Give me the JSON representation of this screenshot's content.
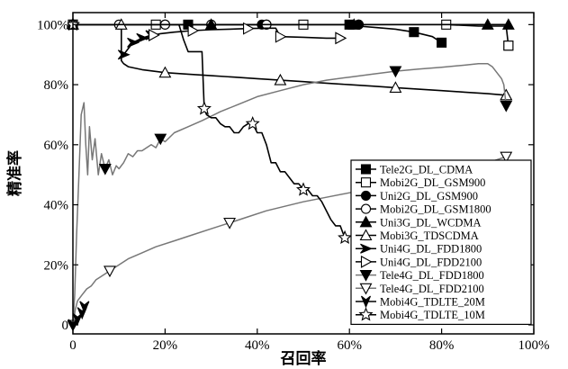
{
  "chart_data": {
    "type": "line",
    "title": "",
    "xlabel": "召回率",
    "ylabel": "精准率",
    "xlim": [
      0,
      100
    ],
    "ylim": [
      -3,
      104
    ],
    "x_ticks": [
      "0",
      "20%",
      "40%",
      "60%",
      "80%",
      "100%"
    ],
    "y_ticks": [
      "0",
      "20%",
      "40%",
      "60%",
      "80%",
      "100%"
    ],
    "x_tick_values": [
      0,
      20,
      40,
      60,
      80,
      100
    ],
    "y_tick_values": [
      0,
      20,
      40,
      60,
      80,
      100
    ],
    "grid": false,
    "legend_position": "bottom-right",
    "series": [
      {
        "name": "Tele2G_DL_CDMA",
        "marker": "square-filled",
        "color": "#000000",
        "x": [
          0,
          5,
          10,
          17,
          25,
          35,
          45,
          55,
          60,
          62,
          66,
          70,
          74,
          78,
          80
        ],
        "y": [
          100,
          100,
          100,
          100,
          100,
          100,
          100,
          100,
          100,
          99.5,
          99,
          98.5,
          97.5,
          96,
          94
        ]
      },
      {
        "name": "Mobi2G_DL_GSM900",
        "marker": "square-open",
        "color": "#000000",
        "x": [
          0,
          2,
          10,
          18,
          30,
          41,
          50,
          63,
          75,
          81,
          88,
          94,
          94.5
        ],
        "y": [
          100,
          100,
          100,
          100,
          100,
          100,
          100,
          100,
          100,
          100,
          99.5,
          99.5,
          93
        ]
      },
      {
        "name": "Uni2G_DL_GSM900",
        "marker": "circle-filled",
        "color": "#000000",
        "x": [
          0,
          10,
          20,
          30,
          41,
          50,
          62
        ],
        "y": [
          100,
          100,
          100,
          100,
          100,
          100,
          100
        ]
      },
      {
        "name": "Mobi2G_DL_GSM1800",
        "marker": "circle-open",
        "color": "#000000",
        "x": [
          0,
          10,
          20,
          30,
          42
        ],
        "y": [
          100,
          100,
          100,
          100,
          100
        ]
      },
      {
        "name": "Uni3G_DL_WCDMA",
        "marker": "triangle-up-filled",
        "color": "#000000",
        "x": [
          0,
          3,
          17,
          30,
          41,
          50,
          61,
          71,
          81,
          90,
          94.5
        ],
        "y": [
          100,
          100,
          100,
          100,
          100,
          100,
          100,
          100,
          100,
          100,
          100
        ]
      },
      {
        "name": "Mobi3G_TDSCDMA",
        "marker": "triangle-up-open",
        "color": "#000000",
        "x": [
          10.5,
          10.5,
          11,
          12,
          15,
          20,
          25,
          30,
          35,
          40,
          45,
          50,
          55,
          60,
          65,
          70,
          75,
          80,
          85,
          90,
          94
        ],
        "y": [
          100,
          88,
          87,
          86,
          85,
          84,
          83.5,
          83,
          82.5,
          82,
          81.5,
          81,
          80.5,
          80,
          79.5,
          79,
          78.5,
          78,
          77.5,
          77,
          76.5
        ]
      },
      {
        "name": "Uni4G_DL_FDD1800",
        "marker": "arrow-right-filled",
        "color": "#000000",
        "x": [
          11,
          13,
          15,
          17
        ],
        "y": [
          90,
          94,
          95.5,
          96.5
        ]
      },
      {
        "name": "Uni4G_DL_FDD2100",
        "marker": "triangle-right-open",
        "color": "#000000",
        "x": [
          17.5,
          19,
          22,
          26,
          30,
          34,
          38,
          42,
          44,
          45,
          50,
          55,
          58
        ],
        "y": [
          96.5,
          97,
          97.5,
          98,
          98.3,
          98.5,
          98.7,
          98.8,
          98.8,
          96,
          95.8,
          95.5,
          95.5
        ]
      },
      {
        "name": "Tele4G_DL_FDD1800",
        "marker": "triangle-down-filled",
        "color": "#777777",
        "x": [
          0,
          0.4,
          0.8,
          1.3,
          1.8,
          2.4,
          2.8,
          3.2,
          3.6,
          4.2,
          4.8,
          5.5,
          6.2,
          7,
          7.8,
          8.6,
          9.4,
          10,
          11,
          12,
          13,
          14,
          15,
          16,
          17,
          18,
          19,
          20,
          22,
          25,
          28,
          32,
          36,
          40,
          45,
          50,
          55,
          60,
          65,
          70,
          75,
          80,
          85,
          88,
          90,
          91,
          92,
          93,
          93.5,
          94
        ],
        "y": [
          0,
          10,
          30,
          50,
          70,
          74,
          60,
          50,
          66,
          55,
          62,
          50,
          57,
          52,
          55,
          50,
          53,
          52,
          54,
          57,
          56,
          58,
          58,
          59,
          60,
          59,
          62,
          61,
          64,
          66,
          68,
          71,
          73.5,
          76,
          78,
          80,
          81.5,
          82.5,
          83.5,
          84.5,
          85.2,
          85.8,
          86.5,
          87,
          87,
          86,
          84,
          82,
          80,
          73
        ]
      },
      {
        "name": "Tele4G_DL_FDD2100",
        "marker": "triangle-down-open",
        "color": "#777777",
        "x": [
          0,
          0.5,
          1,
          2,
          3,
          4,
          5,
          6,
          8,
          10,
          12,
          15,
          18,
          22,
          26,
          30,
          34,
          38,
          42,
          46,
          50,
          55,
          60,
          65,
          70,
          75,
          80,
          85,
          90,
          94
        ],
        "y": [
          0,
          5,
          8,
          10,
          12,
          13,
          15,
          16,
          18,
          20,
          22,
          24,
          26,
          28,
          30,
          32,
          34,
          36,
          38,
          39.5,
          41,
          42.5,
          44,
          45.5,
          47,
          49,
          51,
          52.5,
          54,
          56
        ]
      },
      {
        "name": "Mobi4G_TDLTE_20M",
        "marker": "arrow-down-filled",
        "color": "#000000",
        "x": [
          0,
          1,
          2,
          2.5
        ],
        "y": [
          0,
          2,
          4,
          6
        ]
      },
      {
        "name": "Mobi4G_TDLTE_10M",
        "marker": "star-open",
        "color": "#000000",
        "x": [
          0,
          5,
          10,
          15,
          20,
          23,
          24,
          25,
          26,
          27,
          28,
          28.5,
          29,
          30,
          31,
          32,
          33,
          34,
          35,
          36,
          37,
          38,
          39,
          40,
          41,
          42,
          43,
          44,
          45,
          46,
          47,
          48,
          49,
          50,
          51,
          52,
          53,
          54,
          55,
          56,
          57,
          58,
          58.5,
          59
        ],
        "y": [
          100,
          100,
          100,
          100,
          100,
          100,
          95,
          91,
          91,
          91,
          91,
          72,
          70,
          69,
          69,
          67,
          66,
          66,
          64,
          64,
          66,
          67,
          67,
          64,
          64,
          60,
          54,
          54,
          51,
          51,
          49,
          47,
          47,
          45,
          45,
          43,
          43,
          41,
          38,
          35,
          33,
          33,
          31,
          29
        ]
      }
    ]
  }
}
